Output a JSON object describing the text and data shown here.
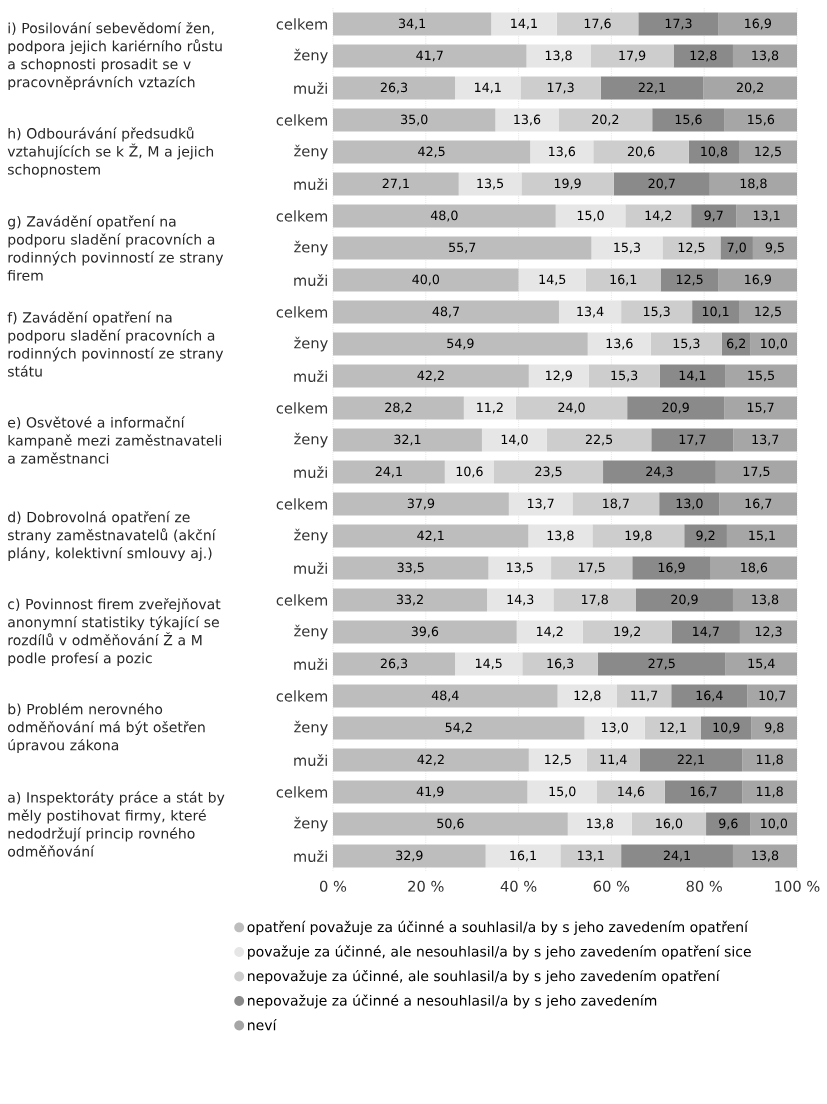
{
  "chart_data": {
    "type": "bar",
    "orientation": "horizontal",
    "stacked": true,
    "categories": [
      "celkem",
      "ženy",
      "muži",
      "celkem",
      "ženy",
      "muži",
      "celkem",
      "ženy",
      "muži",
      "celkem",
      "ženy",
      "muži",
      "celkem",
      "ženy",
      "muži",
      "celkem",
      "ženy",
      "muži",
      "celkem",
      "ženy",
      "muži",
      "celkem",
      "ženy",
      "muži",
      "celkem",
      "ženy",
      "muži"
    ],
    "series": [
      {
        "name": "opatření považuje za účinné a souhlasil/a by s jeho zavedením  opatření",
        "color": "#bdbdbd",
        "values": [
          34.1,
          41.7,
          26.3,
          35.0,
          42.5,
          27.1,
          48.0,
          55.7,
          40.0,
          48.7,
          54.9,
          42.2,
          28.2,
          32.1,
          24.1,
          37.9,
          42.1,
          33.5,
          33.2,
          39.6,
          26.3,
          48.4,
          54.2,
          42.2,
          41.9,
          50.6,
          32.9
        ],
        "value_labels": [
          "34,1",
          "41,7",
          "26,3",
          "35,0",
          "42,5",
          "27,1",
          "48,0",
          "55,7",
          "40,0",
          "48,7",
          "54,9",
          "42,2",
          "28,2",
          "32,1",
          "24,1",
          "37,9",
          "42,1",
          "33,5",
          "33,2",
          "39,6",
          "26,3",
          "48,4",
          "54,2",
          "42,2",
          "41,9",
          "50,6",
          "32,9"
        ]
      },
      {
        "name": "považuje za účinné, ale nesouhlasil/a by s jeho zavedením opatření sice",
        "color": "#e6e6e6",
        "values": [
          14.1,
          13.8,
          14.1,
          13.6,
          13.6,
          13.5,
          15.0,
          15.3,
          14.5,
          13.4,
          13.6,
          12.9,
          11.2,
          14.0,
          10.6,
          13.7,
          13.8,
          13.5,
          14.3,
          14.2,
          14.5,
          12.8,
          13.0,
          12.5,
          15.0,
          13.8,
          16.1
        ],
        "value_labels": [
          "14,1",
          "13,8",
          "14,1",
          "13,6",
          "13,6",
          "13,5",
          "15,0",
          "15,3",
          "14,5",
          "13,4",
          "13,6",
          "12,9",
          "11,2",
          "14,0",
          "10,6",
          "13,7",
          "13,8",
          "13,5",
          "14,3",
          "14,2",
          "14,5",
          "12,8",
          "13,0",
          "12,5",
          "15,0",
          "13,8",
          "16,1"
        ]
      },
      {
        "name": "nepovažuje za účinné, ale souhlasil/a by s jeho zavedením opatření",
        "color": "#cdcdcd",
        "values": [
          17.6,
          17.9,
          17.3,
          20.2,
          20.6,
          19.9,
          14.2,
          12.5,
          16.1,
          15.3,
          15.3,
          15.3,
          24.0,
          22.5,
          23.5,
          18.7,
          19.8,
          17.5,
          17.8,
          19.2,
          16.3,
          11.7,
          12.1,
          11.4,
          14.6,
          16.0,
          13.1
        ],
        "value_labels": [
          "17,6",
          "17,9",
          "17,3",
          "20,2",
          "20,6",
          "19,9",
          "14,2",
          "12,5",
          "16,1",
          "15,3",
          "15,3",
          "15,3",
          "24,0",
          "22,5",
          "23,5",
          "18,7",
          "19,8",
          "17,5",
          "17,8",
          "19,2",
          "16,3",
          "11,7",
          "12,1",
          "11,4",
          "14,6",
          "16,0",
          "13,1"
        ]
      },
      {
        "name": "nepovažuje za účinné a nesouhlasil/a by s jeho zavedením",
        "color": "#8a8a8a",
        "values": [
          17.3,
          12.8,
          22.1,
          15.6,
          10.8,
          20.7,
          9.7,
          7.0,
          12.5,
          10.1,
          6.2,
          14.1,
          20.9,
          17.7,
          24.3,
          13.0,
          9.2,
          16.9,
          20.9,
          14.7,
          27.5,
          16.4,
          10.9,
          22.1,
          16.7,
          9.6,
          24.1
        ],
        "value_labels": [
          "17,3",
          "12,8",
          "22,1",
          "15,6",
          "10,8",
          "20,7",
          "9,7",
          "7,0",
          "12,5",
          "10,1",
          "6,2",
          "14,1",
          "20,9",
          "17,7",
          "24,3",
          "13,0",
          "9,2",
          "16,9",
          "20,9",
          "14,7",
          "27,5",
          "16,4",
          "10,9",
          "22,1",
          "16,7",
          "9,6",
          "24,1"
        ]
      },
      {
        "name": "neví",
        "color": "#a6a6a6",
        "values": [
          16.9,
          13.8,
          20.2,
          15.6,
          12.5,
          18.8,
          13.1,
          9.5,
          16.9,
          12.5,
          10.0,
          15.5,
          15.7,
          13.7,
          17.5,
          16.7,
          15.1,
          18.6,
          13.8,
          12.3,
          15.4,
          10.7,
          9.8,
          11.8,
          11.8,
          10.0,
          13.8
        ],
        "value_labels": [
          "16,9",
          "13,8",
          "20,2",
          "15,6",
          "12,5",
          "18,8",
          "13,1",
          "9,5",
          "16,9",
          "12,5",
          "10,0",
          "15,5",
          "15,7",
          "13,7",
          "17,5",
          "16,7",
          "15,1",
          "18,6",
          "13,8",
          "12,3",
          "15,4",
          "10,7",
          "9,8",
          "11,8",
          "11,8",
          "10,0",
          "13,8"
        ]
      }
    ],
    "xlim": [
      0,
      100
    ],
    "xticks": [
      {
        "value": 0,
        "label": "0 %"
      },
      {
        "value": 20,
        "label": "20 %"
      },
      {
        "value": 40,
        "label": "40 %"
      },
      {
        "value": 60,
        "label": "60 %"
      },
      {
        "value": 80,
        "label": "80 %"
      },
      {
        "value": 100,
        "label": "100 %"
      }
    ],
    "grid": "x",
    "legend": "bottom",
    "annotations": [
      "i) Posilování sebevědomí žen, podpora jejich kariérního růstu a schopnosti prosadit se v pracovněprávních vztazích",
      "h) Odbourávání předsudků vztahujících se k Ž, M a jejich schopnostem",
      "g) Zavádění opatření na podporu sladění pracovních a rodinných povinností ze strany firem",
      "f) Zavádění opatření na podporu sladění pracovních a rodinných povinností ze strany státu",
      "e) Osvětové a informační kampaně mezi zaměstnavateli a zaměstnanci",
      "d) Dobrovolná opatření ze strany zaměstnavatelů (akční plány, kolektivní smlouvy aj.)",
      "c) Povinnost firem zveřejňovat anonymní statistiky týkající se rozdílů v odměňování Ž a M podle profesí a pozic",
      "b) Problém nerovného odměňování má být ošetřen úpravou zákona",
      "a) Inspektoráty práce a stát by měly postihovat firmy, které nedodržují princip rovného odměňování"
    ]
  }
}
